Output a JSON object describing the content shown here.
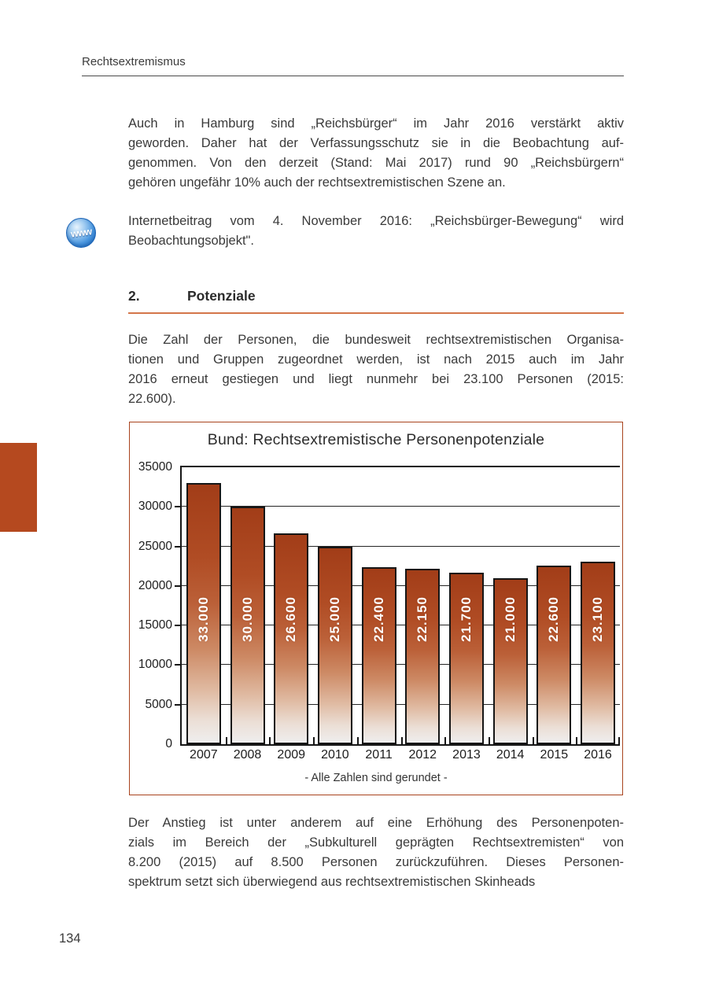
{
  "page": {
    "header": "Rechtsextremismus",
    "number": "134"
  },
  "section": {
    "number": "2.",
    "title": "Potenziale"
  },
  "icons": {
    "www_icon_text": "www"
  },
  "paragraphs": {
    "p1": {
      "lines": [
        "Auch in Hamburg sind „Reichsbürger“ im Jahr 2016 verstärkt aktiv",
        "geworden. Daher hat der Verfassungsschutz sie in die Beobachtung auf-",
        "genommen. Von den derzeit (Stand: Mai 2017) rund 90 „Reichsbürgern“",
        "gehören ungefähr 10% auch der rechtsextremistischen Szene an."
      ]
    },
    "p2": {
      "lines": [
        "Internetbeitrag vom 4. November 2016: „Reichsbürger-Bewegung“ wird",
        "Beobachtungsobjekt\"."
      ]
    },
    "p3": {
      "lines": [
        "Die Zahl der Personen, die bundesweit rechtsextremistischen Organisa-",
        "tionen und Gruppen zugeordnet werden, ist nach 2015 auch im Jahr",
        "2016 erneut gestiegen und liegt nunmehr bei 23.100 Personen (2015:",
        "22.600)."
      ]
    },
    "p4": {
      "lines": [
        "Der Anstieg ist unter anderem auf eine Erhöhung des Personenpoten-",
        "zials im Bereich der „Subkulturell geprägten Rechtsextremisten“ von",
        "8.200 (2015) auf 8.500 Personen zurückzuführen. Dieses Personen-",
        "spektrum setzt sich überwiegend aus rechtsextremistischen Skinheads"
      ]
    }
  },
  "chart_data": {
    "type": "bar",
    "title": "Bund: Rechtsextremistische Personenpotenziale",
    "categories": [
      "2007",
      "2008",
      "2009",
      "2010",
      "2011",
      "2012",
      "2013",
      "2014",
      "2015",
      "2016"
    ],
    "values": [
      33000,
      30000,
      26600,
      25000,
      22400,
      22150,
      21700,
      21000,
      22600,
      23100
    ],
    "bar_labels": [
      "33.000",
      "30.000",
      "26.600",
      "25.000",
      "22.400",
      "22.150",
      "21.700",
      "21.000",
      "22.600",
      "23.100"
    ],
    "xlabel": "",
    "ylabel": "",
    "ylim": [
      0,
      35000
    ],
    "yticks": [
      0,
      5000,
      10000,
      15000,
      20000,
      25000,
      30000,
      35000
    ],
    "grid": true,
    "legend": null,
    "footnote": "- Alle Zahlen sind gerundet -",
    "bar_color_top": "#a23d18",
    "bar_color_bottom": "#efeeee",
    "box_border_color": "#a8431d"
  },
  "colors": {
    "accent_rust": "#b5491f",
    "heading_rule": "#d4764a",
    "www_blue": "#1d6ecc"
  }
}
